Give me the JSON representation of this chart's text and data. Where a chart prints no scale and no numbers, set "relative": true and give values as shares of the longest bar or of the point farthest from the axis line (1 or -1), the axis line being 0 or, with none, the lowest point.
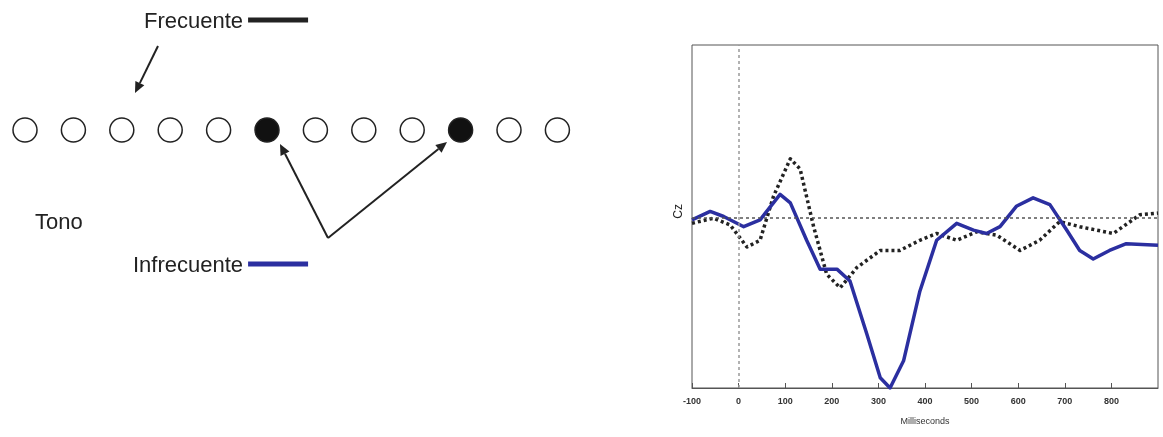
{
  "chart_data": {
    "type": "line",
    "relative": true,
    "xlabel": "Milliseconds",
    "ylabel": "Cz",
    "annotations": [
      "Tono"
    ],
    "xlim": [
      -100,
      900
    ],
    "xticks": [
      -100,
      0,
      100,
      200,
      300,
      400,
      500,
      600,
      700,
      800
    ],
    "legend": "left",
    "grid": false,
    "marker": "none",
    "ref_lines": [
      {
        "axis": "y",
        "value": 0,
        "line_style": "dotted",
        "color": "#555555"
      },
      {
        "axis": "x",
        "value": 0,
        "line_style": "dotted",
        "color": "#999999"
      }
    ],
    "series": [
      {
        "name": "Frecuente",
        "color": "#222222",
        "line_style": "dotted",
        "x": [
          -100,
          -54,
          -18,
          18,
          46,
          75,
          111,
          132,
          161,
          189,
          218,
          254,
          304,
          346,
          389,
          425,
          468,
          511,
          554,
          604,
          646,
          689,
          732,
          804,
          861,
          900
        ],
        "values": [
          -0.03,
          0,
          -0.04,
          -0.17,
          -0.13,
          0.13,
          0.35,
          0.29,
          -0.05,
          -0.33,
          -0.41,
          -0.29,
          -0.19,
          -0.19,
          -0.13,
          -0.09,
          -0.13,
          -0.08,
          -0.1,
          -0.19,
          -0.13,
          -0.02,
          -0.05,
          -0.09,
          0.02,
          0.03
        ]
      },
      {
        "name": "Infrecuente",
        "color": "#2b2fa0",
        "line_style": "solid",
        "x": [
          -100,
          -61,
          -32,
          11,
          46,
          89,
          111,
          146,
          175,
          211,
          239,
          275,
          304,
          325,
          354,
          389,
          425,
          468,
          504,
          532,
          561,
          596,
          632,
          668,
          704,
          732,
          761,
          796,
          832,
          900
        ],
        "values": [
          -0.01,
          0.04,
          0.01,
          -0.05,
          -0.01,
          0.14,
          0.09,
          -0.13,
          -0.3,
          -0.3,
          -0.37,
          -0.68,
          -0.94,
          -1,
          -0.84,
          -0.43,
          -0.13,
          -0.03,
          -0.07,
          -0.09,
          -0.05,
          0.07,
          0.12,
          0.08,
          -0.07,
          -0.19,
          -0.24,
          -0.19,
          -0.15,
          -0.16
        ]
      }
    ]
  }
}
